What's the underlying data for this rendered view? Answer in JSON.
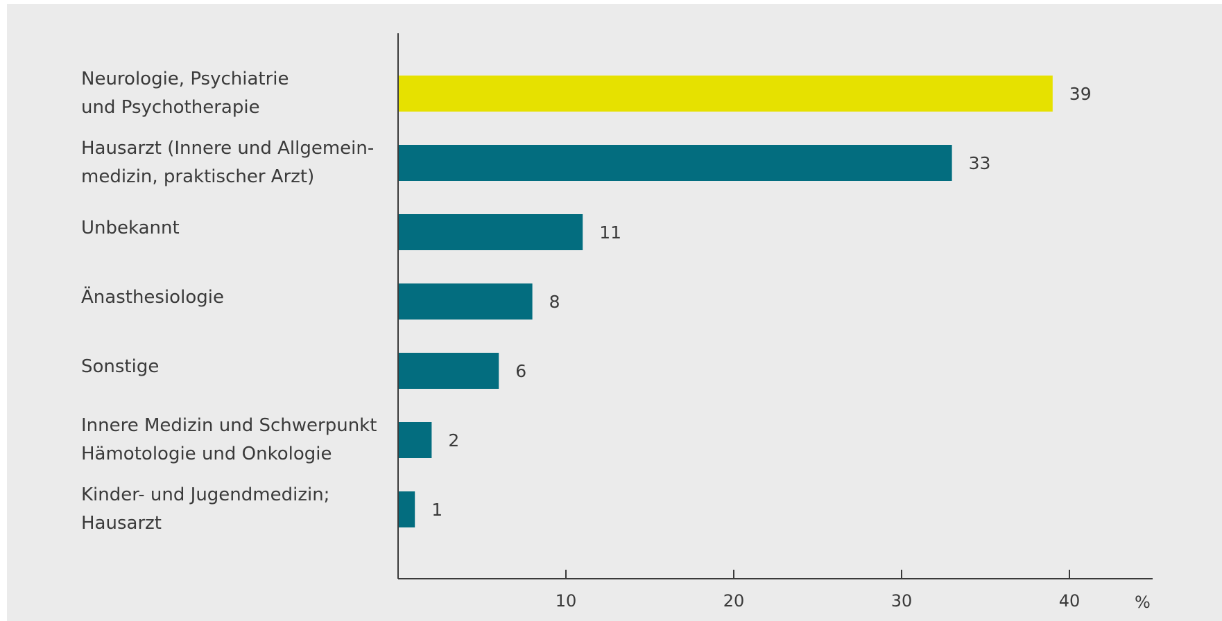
{
  "chart_data": {
    "type": "bar",
    "orientation": "horizontal",
    "categories": [
      [
        "Neurologie, Psychiatrie",
        "und Psychotherapie"
      ],
      [
        "Hausarzt (Innere und Allgemein-",
        "medizin, praktischer Arzt)"
      ],
      [
        "Unbekannt"
      ],
      [
        "Änasthesiologie"
      ],
      [
        "Sonstige"
      ],
      [
        "Innere Medizin und Schwerpunkt",
        "Hämotologie und Onkologie"
      ],
      [
        "Kinder- und Jugendmedizin;",
        "Hausarzt"
      ]
    ],
    "values": [
      39,
      33,
      11,
      8,
      6,
      2,
      1
    ],
    "value_labels": [
      "39",
      "33",
      "11",
      "8",
      "6",
      "2",
      "1"
    ],
    "highlight_index": 0,
    "xlim": [
      0,
      45
    ],
    "x_ticks": [
      10,
      20,
      30,
      40
    ],
    "x_tick_labels": [
      "10",
      "20",
      "30",
      "40"
    ],
    "x_unit": "%",
    "grid": false,
    "colors": {
      "highlight": "#e6e100",
      "bar": "#036d7f",
      "axis": "#3a3a3a",
      "background": "#ebebeb"
    }
  }
}
